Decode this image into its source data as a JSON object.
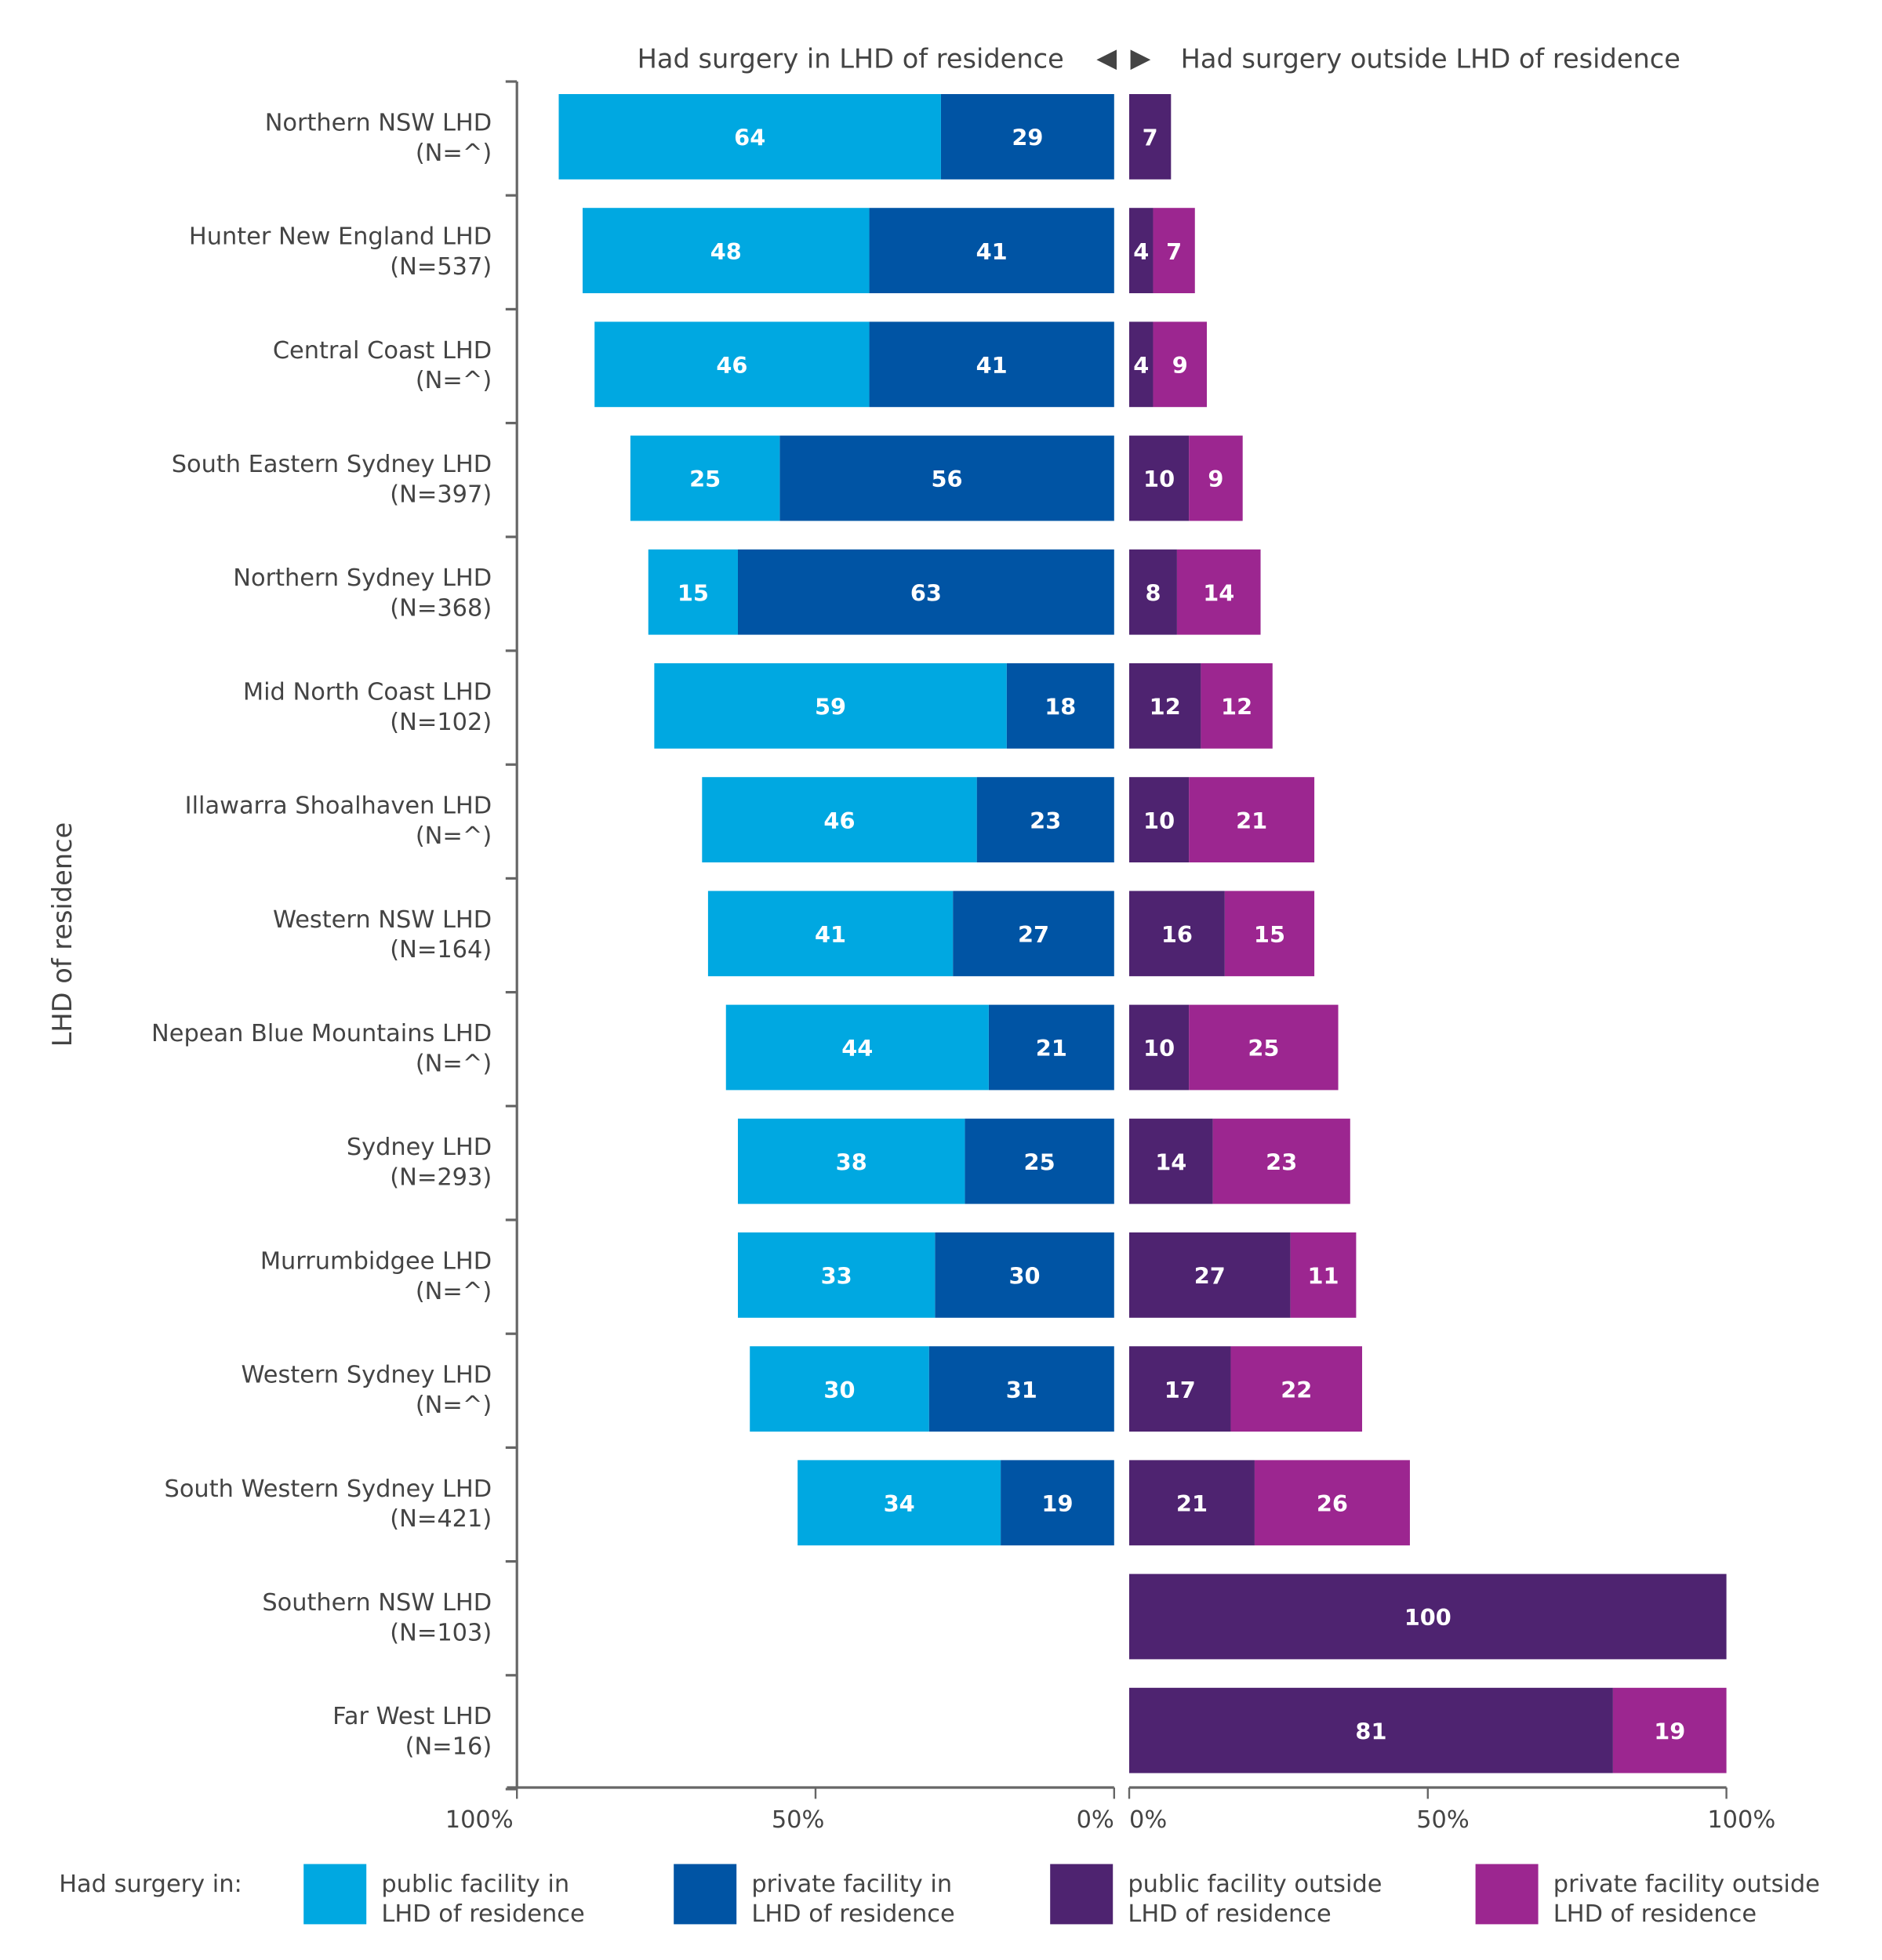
{
  "chart_data": {
    "type": "bar",
    "orientation": "horizontal",
    "stacked": true,
    "ylabel": "LHD of residence",
    "header_left": "Had surgery in LHD of residence",
    "header_right": "Had surgery outside LHD of residence",
    "header_arrows": [
      "◀",
      "▶"
    ],
    "left_ticks": [
      "100%",
      "50%",
      "0%"
    ],
    "right_ticks": [
      "0%",
      "50%",
      "100%"
    ],
    "xlim": [
      0,
      100
    ],
    "legend_title": "Had surgery in:",
    "legend_placement": "bottom",
    "categories": [
      [
        "Northern NSW LHD",
        "(N=^)"
      ],
      [
        "Hunter New England LHD",
        "(N=537)"
      ],
      [
        "Central Coast LHD",
        "(N=^)"
      ],
      [
        "South Eastern Sydney LHD",
        "(N=397)"
      ],
      [
        "Northern Sydney LHD",
        "(N=368)"
      ],
      [
        "Mid North Coast LHD",
        "(N=102)"
      ],
      [
        "Illawarra Shoalhaven LHD",
        "(N=^)"
      ],
      [
        "Western NSW LHD",
        "(N=164)"
      ],
      [
        "Nepean Blue Mountains LHD",
        "(N=^)"
      ],
      [
        "Sydney LHD",
        "(N=293)"
      ],
      [
        "Murrumbidgee LHD",
        "(N=^)"
      ],
      [
        "Western Sydney LHD",
        "(N=^)"
      ],
      [
        "South Western Sydney LHD",
        "(N=421)"
      ],
      [
        "Southern NSW LHD",
        "(N=103)"
      ],
      [
        "Far West LHD",
        "(N=16)"
      ]
    ],
    "series": [
      {
        "name": [
          "public facility in",
          "LHD of residence"
        ],
        "side": "left",
        "color": "#00A8E1",
        "values": [
          64,
          48,
          46,
          25,
          15,
          59,
          46,
          41,
          44,
          38,
          33,
          30,
          34,
          0,
          0
        ]
      },
      {
        "name": [
          "private facility in",
          "LHD of residence"
        ],
        "side": "left",
        "color": "#0054A4",
        "values": [
          29,
          41,
          41,
          56,
          63,
          18,
          23,
          27,
          21,
          25,
          30,
          31,
          19,
          0,
          0
        ]
      },
      {
        "name": [
          "public facility outside",
          "LHD of residence"
        ],
        "side": "right",
        "color": "#4E2370",
        "values": [
          7,
          4,
          4,
          10,
          8,
          12,
          10,
          16,
          10,
          14,
          27,
          17,
          21,
          100,
          81
        ]
      },
      {
        "name": [
          "private facility outside",
          "LHD of residence"
        ],
        "side": "right",
        "color": "#9C2690",
        "values": [
          0,
          7,
          9,
          9,
          14,
          12,
          21,
          15,
          25,
          23,
          11,
          22,
          26,
          0,
          19
        ]
      }
    ]
  }
}
